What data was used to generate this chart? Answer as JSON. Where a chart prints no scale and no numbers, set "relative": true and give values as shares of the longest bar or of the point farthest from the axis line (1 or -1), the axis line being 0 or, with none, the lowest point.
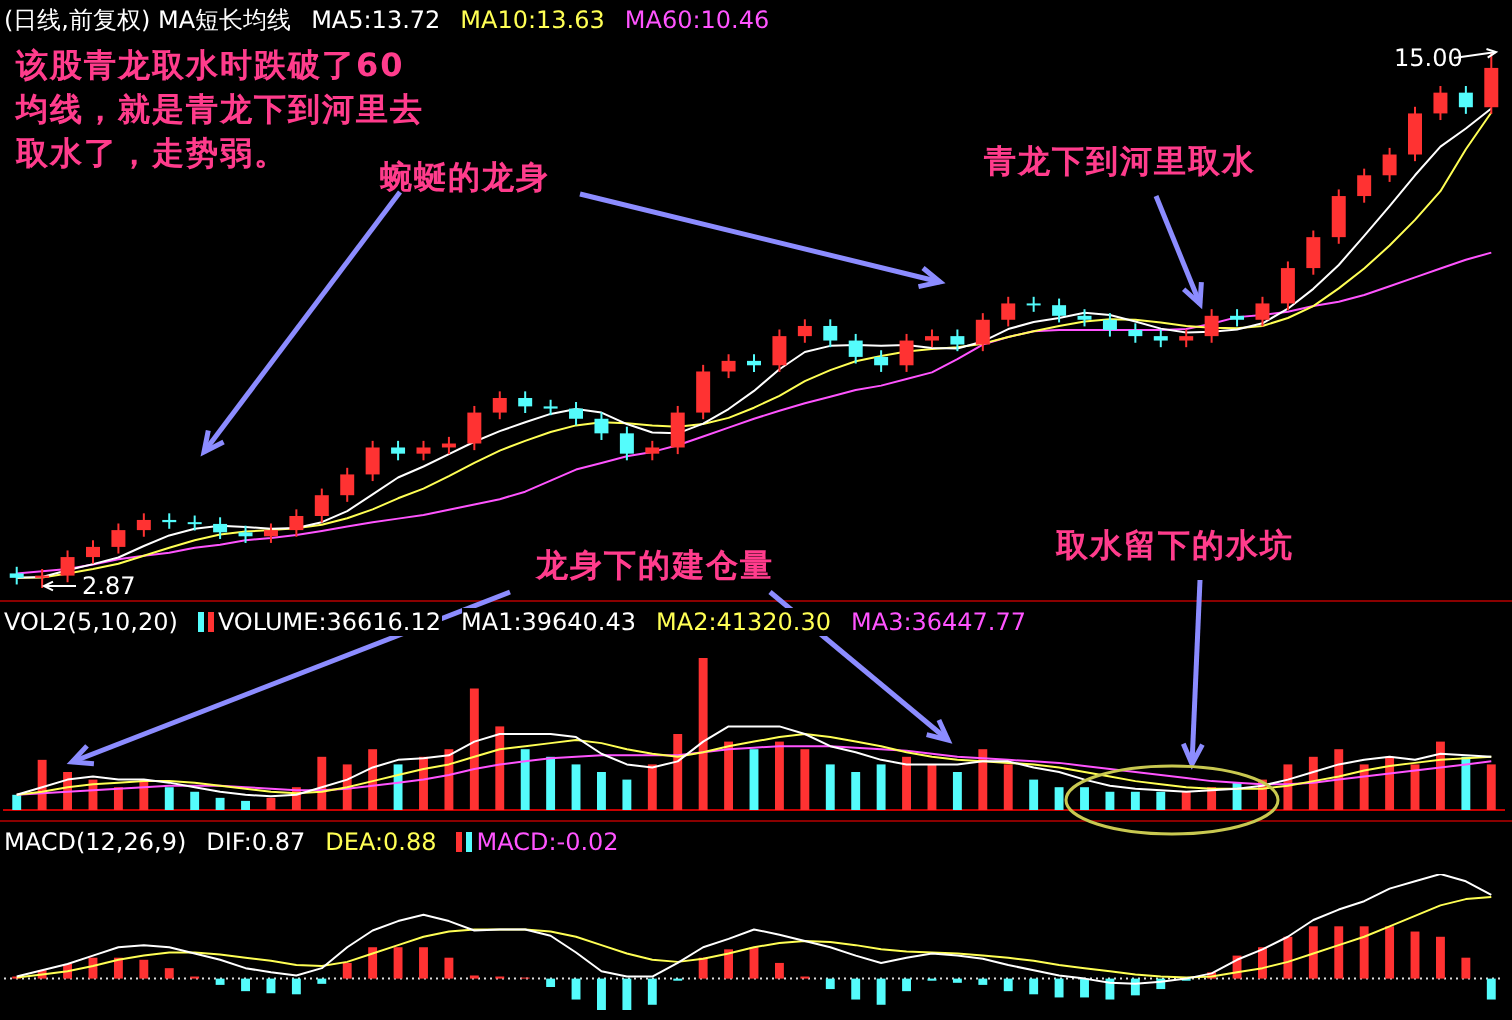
{
  "chart_data": [
    {
      "type": "candlestick",
      "title": "(日线,前复权) MA短长均线",
      "legend": "top left",
      "tick_labels": false,
      "categories": [
        null,
        null,
        null,
        null,
        null,
        null,
        null,
        null,
        null,
        null,
        null,
        null,
        null,
        null,
        null,
        null,
        null,
        null,
        null,
        null,
        null,
        null,
        null,
        null,
        null,
        null,
        null,
        null,
        null,
        null,
        null,
        null,
        null,
        null,
        null,
        null,
        null,
        null,
        null,
        null,
        null,
        null,
        null,
        null,
        null,
        null,
        null,
        null,
        null,
        null,
        null,
        null,
        null,
        null,
        null,
        null,
        null,
        null,
        null
      ],
      "ohlc": [
        [
          3.2,
          3.35,
          2.95,
          3.1
        ],
        [
          3.1,
          3.3,
          2.87,
          3.15
        ],
        [
          3.15,
          3.72,
          3.0,
          3.57
        ],
        [
          3.57,
          3.95,
          3.42,
          3.8
        ],
        [
          3.8,
          4.33,
          3.65,
          4.18
        ],
        [
          4.18,
          4.56,
          4.03,
          4.41
        ],
        [
          4.41,
          4.56,
          4.21,
          4.36
        ],
        [
          4.36,
          4.51,
          4.17,
          4.32
        ],
        [
          4.32,
          4.47,
          3.98,
          4.13
        ],
        [
          4.13,
          4.28,
          3.89,
          4.04
        ],
        [
          4.04,
          4.33,
          3.89,
          4.18
        ],
        [
          4.18,
          4.65,
          4.03,
          4.5
        ],
        [
          4.5,
          5.12,
          4.35,
          4.97
        ],
        [
          4.97,
          5.59,
          4.82,
          5.44
        ],
        [
          5.44,
          6.2,
          5.29,
          6.05
        ],
        [
          6.05,
          6.2,
          5.76,
          5.91
        ],
        [
          5.91,
          6.2,
          5.76,
          6.05
        ],
        [
          6.05,
          6.29,
          5.9,
          6.14
        ],
        [
          6.14,
          6.99,
          5.99,
          6.84
        ],
        [
          6.84,
          7.32,
          6.69,
          7.17
        ],
        [
          7.17,
          7.32,
          6.83,
          6.98
        ],
        [
          6.98,
          7.13,
          6.78,
          6.93
        ],
        [
          6.93,
          7.08,
          6.55,
          6.7
        ],
        [
          6.7,
          6.85,
          6.22,
          6.37
        ],
        [
          6.37,
          6.52,
          5.76,
          5.91
        ],
        [
          5.91,
          6.2,
          5.76,
          6.05
        ],
        [
          6.05,
          6.99,
          5.9,
          6.84
        ],
        [
          6.84,
          7.92,
          6.69,
          7.77
        ],
        [
          7.77,
          8.16,
          7.62,
          8.01
        ],
        [
          8.01,
          8.16,
          7.76,
          7.91
        ],
        [
          7.91,
          8.72,
          7.76,
          8.57
        ],
        [
          8.57,
          8.95,
          8.42,
          8.8
        ],
        [
          8.8,
          8.95,
          8.32,
          8.47
        ],
        [
          8.47,
          8.62,
          7.95,
          8.1
        ],
        [
          8.1,
          8.25,
          7.76,
          7.91
        ],
        [
          7.91,
          8.62,
          7.76,
          8.47
        ],
        [
          8.47,
          8.72,
          8.32,
          8.57
        ],
        [
          8.57,
          8.72,
          8.23,
          8.38
        ],
        [
          8.38,
          9.09,
          8.23,
          8.94
        ],
        [
          8.94,
          9.46,
          8.79,
          9.31
        ],
        [
          9.31,
          9.46,
          9.12,
          9.27
        ],
        [
          9.27,
          9.42,
          8.88,
          9.03
        ],
        [
          9.03,
          9.18,
          8.79,
          8.94
        ],
        [
          8.94,
          9.09,
          8.56,
          8.71
        ],
        [
          8.71,
          8.86,
          8.42,
          8.57
        ],
        [
          8.57,
          8.72,
          8.32,
          8.47
        ],
        [
          8.47,
          8.72,
          8.32,
          8.57
        ],
        [
          8.57,
          9.18,
          8.42,
          9.03
        ],
        [
          9.03,
          9.18,
          8.79,
          8.94
        ],
        [
          8.94,
          9.46,
          8.79,
          9.31
        ],
        [
          9.31,
          10.26,
          9.16,
          10.11
        ],
        [
          10.11,
          10.96,
          9.96,
          10.81
        ],
        [
          10.81,
          11.89,
          10.66,
          11.74
        ],
        [
          11.74,
          12.36,
          11.59,
          12.21
        ],
        [
          12.21,
          12.83,
          12.06,
          12.68
        ],
        [
          12.68,
          13.76,
          12.53,
          13.61
        ],
        [
          13.61,
          14.23,
          13.46,
          14.08
        ],
        [
          14.08,
          14.23,
          13.6,
          13.75
        ],
        [
          13.75,
          15.0,
          13.6,
          14.64
        ]
      ],
      "colors": [
        "#54fcfc",
        "#ff3232",
        "#ff3232",
        "#ff3232",
        "#ff3232",
        "#ff3232",
        "#54fcfc",
        "#54fcfc",
        "#54fcfc",
        "#54fcfc",
        "#ff3232",
        "#ff3232",
        "#ff3232",
        "#ff3232",
        "#ff3232",
        "#54fcfc",
        "#ff3232",
        "#ff3232",
        "#ff3232",
        "#ff3232",
        "#54fcfc",
        "#54fcfc",
        "#54fcfc",
        "#54fcfc",
        "#54fcfc",
        "#ff3232",
        "#ff3232",
        "#ff3232",
        "#ff3232",
        "#54fcfc",
        "#ff3232",
        "#ff3232",
        "#54fcfc",
        "#54fcfc",
        "#54fcfc",
        "#ff3232",
        "#ff3232",
        "#54fcfc",
        "#ff3232",
        "#ff3232",
        "#54fcfc",
        "#54fcfc",
        "#54fcfc",
        "#54fcfc",
        "#54fcfc",
        "#54fcfc",
        "#ff3232",
        "#ff3232",
        "#54fcfc",
        "#ff3232",
        "#ff3232",
        "#ff3232",
        "#ff3232",
        "#ff3232",
        "#ff3232",
        "#ff3232",
        "#ff3232",
        "#54fcfc",
        "#ff3232"
      ],
      "series": [
        {
          "type": "line",
          "name": "MA5:13.72",
          "color": "#ffffff",
          "values": [
            3.1,
            3.12,
            3.27,
            3.41,
            3.56,
            3.82,
            4.06,
            4.21,
            4.28,
            4.25,
            4.21,
            4.23,
            4.36,
            4.61,
            4.99,
            5.37,
            5.62,
            5.9,
            6.18,
            6.42,
            6.62,
            6.81,
            6.92,
            6.84,
            6.58,
            6.39,
            6.37,
            6.59,
            6.92,
            7.33,
            7.82,
            8.21,
            8.35,
            8.37,
            8.35,
            8.37,
            8.3,
            8.29,
            8.45,
            8.73,
            8.89,
            8.98,
            9.1,
            9.05,
            8.9,
            8.74,
            8.65,
            8.67,
            8.72,
            8.86,
            9.19,
            9.64,
            10.18,
            10.84,
            11.51,
            12.21,
            12.86,
            13.27,
            13.72
          ]
        },
        {
          "type": "line",
          "name": "MA10:13.63",
          "color": "#ffff54",
          "values": [
            3.1,
            3.11,
            3.2,
            3.3,
            3.42,
            3.6,
            3.78,
            3.95,
            4.08,
            4.15,
            4.18,
            4.22,
            4.3,
            4.45,
            4.65,
            4.9,
            5.12,
            5.4,
            5.7,
            5.98,
            6.2,
            6.4,
            6.55,
            6.62,
            6.6,
            6.55,
            6.52,
            6.58,
            6.72,
            6.95,
            7.22,
            7.55,
            7.8,
            8.0,
            8.12,
            8.22,
            8.28,
            8.32,
            8.4,
            8.55,
            8.68,
            8.8,
            8.9,
            8.95,
            8.94,
            8.88,
            8.8,
            8.76,
            8.75,
            8.8,
            8.98,
            9.25,
            9.65,
            10.1,
            10.62,
            11.2,
            11.85,
            12.8,
            13.63
          ]
        },
        {
          "type": "line",
          "name": "MA60:10.46",
          "color": "#ff54ff",
          "values": [
            3.2,
            3.25,
            3.3,
            3.4,
            3.52,
            3.6,
            3.67,
            3.78,
            3.85,
            3.95,
            4.0,
            4.07,
            4.16,
            4.26,
            4.36,
            4.44,
            4.52,
            4.64,
            4.76,
            4.88,
            5.05,
            5.3,
            5.55,
            5.7,
            5.85,
            5.95,
            6.1,
            6.3,
            6.5,
            6.7,
            6.88,
            7.05,
            7.2,
            7.35,
            7.45,
            7.6,
            7.75,
            8.05,
            8.38,
            8.55,
            8.68,
            8.71,
            8.71,
            8.71,
            8.71,
            8.71,
            8.73,
            8.85,
            9.0,
            9.05,
            9.12,
            9.25,
            9.35,
            9.5,
            9.7,
            9.9,
            10.1,
            10.3,
            10.46
          ]
        }
      ],
      "annotations": [
        "2.87",
        "15.00",
        "该股青龙取水时跌破了60均线，就是青龙下到河里去取水了，走势弱。",
        "蜿蜒的龙身",
        "青龙下到河里取水",
        "龙身下的建仓量",
        "取水留下的水坑"
      ]
    },
    {
      "type": "bar",
      "title": "VOL2(5,10,20)",
      "legend": "top left",
      "tick_labels": false,
      "relative": true,
      "categories": [
        null,
        null,
        null,
        null,
        null,
        null,
        null,
        null,
        null,
        null,
        null,
        null,
        null,
        null,
        null,
        null,
        null,
        null,
        null,
        null,
        null,
        null,
        null,
        null,
        null,
        null,
        null,
        null,
        null,
        null,
        null,
        null,
        null,
        null,
        null,
        null,
        null,
        null,
        null,
        null,
        null,
        null,
        null,
        null,
        null,
        null,
        null,
        null,
        null,
        null,
        null,
        null,
        null,
        null,
        null,
        null,
        null,
        null,
        null
      ],
      "series": [
        {
          "name": "VOLUME:36616.12",
          "colors": [
            "#54fcfc",
            "#ff3232",
            "#ff3232",
            "#ff3232",
            "#ff3232",
            "#ff3232",
            "#54fcfc",
            "#54fcfc",
            "#54fcfc",
            "#54fcfc",
            "#ff3232",
            "#ff3232",
            "#ff3232",
            "#ff3232",
            "#ff3232",
            "#54fcfc",
            "#ff3232",
            "#ff3232",
            "#ff3232",
            "#ff3232",
            "#54fcfc",
            "#54fcfc",
            "#54fcfc",
            "#54fcfc",
            "#54fcfc",
            "#ff3232",
            "#ff3232",
            "#ff3232",
            "#ff3232",
            "#54fcfc",
            "#ff3232",
            "#ff3232",
            "#54fcfc",
            "#54fcfc",
            "#54fcfc",
            "#ff3232",
            "#ff3232",
            "#54fcfc",
            "#ff3232",
            "#ff3232",
            "#54fcfc",
            "#54fcfc",
            "#54fcfc",
            "#54fcfc",
            "#54fcfc",
            "#54fcfc",
            "#ff3232",
            "#ff3232",
            "#54fcfc",
            "#ff3232",
            "#ff3232",
            "#ff3232",
            "#ff3232",
            "#ff3232",
            "#ff3232",
            "#ff3232",
            "#ff3232",
            "#54fcfc",
            "#ff3232"
          ],
          "values": [
            0.1,
            0.33,
            0.25,
            0.2,
            0.15,
            0.2,
            0.15,
            0.12,
            0.08,
            0.06,
            0.08,
            0.15,
            0.35,
            0.3,
            0.4,
            0.3,
            0.35,
            0.4,
            0.8,
            0.55,
            0.4,
            0.35,
            0.3,
            0.25,
            0.2,
            0.3,
            0.5,
            1,
            0.45,
            0.4,
            0.45,
            0.4,
            0.3,
            0.25,
            0.3,
            0.35,
            0.3,
            0.25,
            0.4,
            0.3,
            0.2,
            0.15,
            0.15,
            0.12,
            0.12,
            0.12,
            0.12,
            0.15,
            0.18,
            0.2,
            0.3,
            0.35,
            0.4,
            0.3,
            0.35,
            0.3,
            0.45,
            0.35,
            0.3
          ]
        },
        {
          "type": "line",
          "name": "MA1:39640.43",
          "color": "#ffffff",
          "values": [
            0.1,
            0.15,
            0.2,
            0.22,
            0.2,
            0.2,
            0.18,
            0.15,
            0.12,
            0.1,
            0.09,
            0.1,
            0.15,
            0.2,
            0.28,
            0.33,
            0.34,
            0.36,
            0.45,
            0.5,
            0.5,
            0.5,
            0.48,
            0.37,
            0.3,
            0.28,
            0.32,
            0.45,
            0.55,
            0.55,
            0.55,
            0.5,
            0.42,
            0.38,
            0.33,
            0.3,
            0.3,
            0.3,
            0.32,
            0.32,
            0.28,
            0.25,
            0.2,
            0.16,
            0.14,
            0.13,
            0.12,
            0.13,
            0.14,
            0.16,
            0.2,
            0.25,
            0.3,
            0.33,
            0.35,
            0.33,
            0.37,
            0.36,
            0.35
          ]
        },
        {
          "type": "line",
          "name": "MA2:41320.30",
          "color": "#ffff54",
          "values": [
            0.1,
            0.12,
            0.15,
            0.17,
            0.18,
            0.19,
            0.19,
            0.18,
            0.16,
            0.14,
            0.12,
            0.11,
            0.12,
            0.15,
            0.19,
            0.23,
            0.27,
            0.3,
            0.35,
            0.4,
            0.42,
            0.44,
            0.46,
            0.44,
            0.4,
            0.37,
            0.35,
            0.38,
            0.42,
            0.45,
            0.48,
            0.5,
            0.48,
            0.45,
            0.42,
            0.38,
            0.35,
            0.33,
            0.32,
            0.31,
            0.3,
            0.28,
            0.25,
            0.22,
            0.19,
            0.17,
            0.15,
            0.14,
            0.14,
            0.14,
            0.16,
            0.19,
            0.22,
            0.26,
            0.29,
            0.31,
            0.33,
            0.34,
            0.35
          ]
        },
        {
          "type": "line",
          "name": "MA3:36447.77",
          "color": "#ff54ff",
          "values": [
            0.1,
            0.11,
            0.12,
            0.13,
            0.14,
            0.15,
            0.16,
            0.16,
            0.16,
            0.15,
            0.14,
            0.13,
            0.13,
            0.14,
            0.16,
            0.18,
            0.2,
            0.23,
            0.27,
            0.3,
            0.32,
            0.34,
            0.35,
            0.36,
            0.36,
            0.36,
            0.36,
            0.38,
            0.4,
            0.41,
            0.42,
            0.42,
            0.42,
            0.41,
            0.4,
            0.39,
            0.37,
            0.35,
            0.34,
            0.33,
            0.32,
            0.31,
            0.29,
            0.27,
            0.25,
            0.23,
            0.21,
            0.19,
            0.18,
            0.17,
            0.17,
            0.18,
            0.2,
            0.22,
            0.24,
            0.26,
            0.28,
            0.3,
            0.32
          ]
        }
      ]
    },
    {
      "type": "bar",
      "title": "MACD(12,26,9)",
      "legend": "top left",
      "tick_labels": false,
      "relative": true,
      "ref_lines": [
        {
          "axis": "y",
          "value": 0,
          "color": "#dddddd",
          "line_style": "dotted"
        }
      ],
      "categories": [
        null,
        null,
        null,
        null,
        null,
        null,
        null,
        null,
        null,
        null,
        null,
        null,
        null,
        null,
        null,
        null,
        null,
        null,
        null,
        null,
        null,
        null,
        null,
        null,
        null,
        null,
        null,
        null,
        null,
        null,
        null,
        null,
        null,
        null,
        null,
        null,
        null,
        null,
        null,
        null,
        null,
        null,
        null,
        null,
        null,
        null,
        null,
        null,
        null,
        null,
        null,
        null,
        null,
        null,
        null,
        null,
        null,
        null,
        null
      ],
      "series": [
        {
          "type": "line",
          "name": "DIF:0.87",
          "color": "#ffffff",
          "values": [
            0.02,
            0.08,
            0.14,
            0.22,
            0.3,
            0.32,
            0.3,
            0.24,
            0.18,
            0.1,
            0.06,
            0.03,
            0.1,
            0.3,
            0.46,
            0.55,
            0.61,
            0.55,
            0.46,
            0.47,
            0.47,
            0.41,
            0.25,
            0.07,
            0.02,
            0.02,
            0.15,
            0.3,
            0.38,
            0.47,
            0.42,
            0.36,
            0.3,
            0.22,
            0.15,
            0.2,
            0.24,
            0.22,
            0.19,
            0.13,
            0.08,
            0.03,
            0.0,
            -0.04,
            -0.05,
            -0.03,
            0.0,
            0.05,
            0.18,
            0.28,
            0.4,
            0.56,
            0.66,
            0.74,
            0.86,
            0.93,
            1,
            0.93,
            0.8
          ]
        },
        {
          "type": "line",
          "name": "DEA:0.88",
          "color": "#ffff54",
          "values": [
            0.01,
            0.04,
            0.07,
            0.12,
            0.18,
            0.22,
            0.25,
            0.25,
            0.23,
            0.2,
            0.17,
            0.13,
            0.12,
            0.16,
            0.24,
            0.32,
            0.4,
            0.45,
            0.47,
            0.47,
            0.47,
            0.45,
            0.4,
            0.32,
            0.24,
            0.18,
            0.16,
            0.19,
            0.24,
            0.3,
            0.34,
            0.36,
            0.35,
            0.32,
            0.28,
            0.26,
            0.25,
            0.24,
            0.22,
            0.2,
            0.17,
            0.13,
            0.1,
            0.07,
            0.04,
            0.02,
            0.01,
            0.02,
            0.06,
            0.1,
            0.16,
            0.24,
            0.32,
            0.4,
            0.5,
            0.6,
            0.7,
            0.76,
            0.78
          ]
        },
        {
          "name": "MACD:-0.02",
          "color": "#ff54ff",
          "colors": [
            "#ff3232",
            "#ff3232",
            "#ff3232",
            "#ff3232",
            "#ff3232",
            "#ff3232",
            "#ff3232",
            "#ff3232",
            "#54fcfc",
            "#54fcfc",
            "#54fcfc",
            "#54fcfc",
            "#54fcfc",
            "#ff3232",
            "#ff3232",
            "#ff3232",
            "#ff3232",
            "#ff3232",
            "#ff3232",
            "#ff3232",
            "#ff3232",
            "#54fcfc",
            "#54fcfc",
            "#54fcfc",
            "#54fcfc",
            "#54fcfc",
            "#54fcfc",
            "#ff3232",
            "#ff3232",
            "#ff3232",
            "#ff3232",
            "#ff3232",
            "#54fcfc",
            "#54fcfc",
            "#54fcfc",
            "#54fcfc",
            "#54fcfc",
            "#54fcfc",
            "#54fcfc",
            "#54fcfc",
            "#54fcfc",
            "#54fcfc",
            "#54fcfc",
            "#54fcfc",
            "#54fcfc",
            "#54fcfc",
            "#54fcfc",
            "#ff3232",
            "#ff3232",
            "#ff3232",
            "#ff3232",
            "#ff3232",
            "#ff3232",
            "#ff3232",
            "#ff3232",
            "#ff3232",
            "#ff3232",
            "#ff3232",
            "#54fcfc"
          ],
          "values": [
            0.02,
            0.08,
            0.14,
            0.2,
            0.2,
            0.18,
            0.1,
            0.02,
            -0.06,
            -0.12,
            -0.14,
            -0.15,
            -0.05,
            0.15,
            0.3,
            0.3,
            0.3,
            0.2,
            0.03,
            0.02,
            0.01,
            -0.08,
            -0.2,
            -0.3,
            -0.3,
            -0.25,
            -0.02,
            0.2,
            0.28,
            0.3,
            0.15,
            0.02,
            -0.1,
            -0.2,
            -0.25,
            -0.12,
            -0.02,
            -0.04,
            -0.06,
            -0.12,
            -0.15,
            -0.18,
            -0.18,
            -0.2,
            -0.16,
            -0.1,
            -0.02,
            0.06,
            0.22,
            0.3,
            0.4,
            0.5,
            0.5,
            0.5,
            0.5,
            0.45,
            0.4,
            0.2,
            -0.2
          ]
        }
      ]
    }
  ]
}
